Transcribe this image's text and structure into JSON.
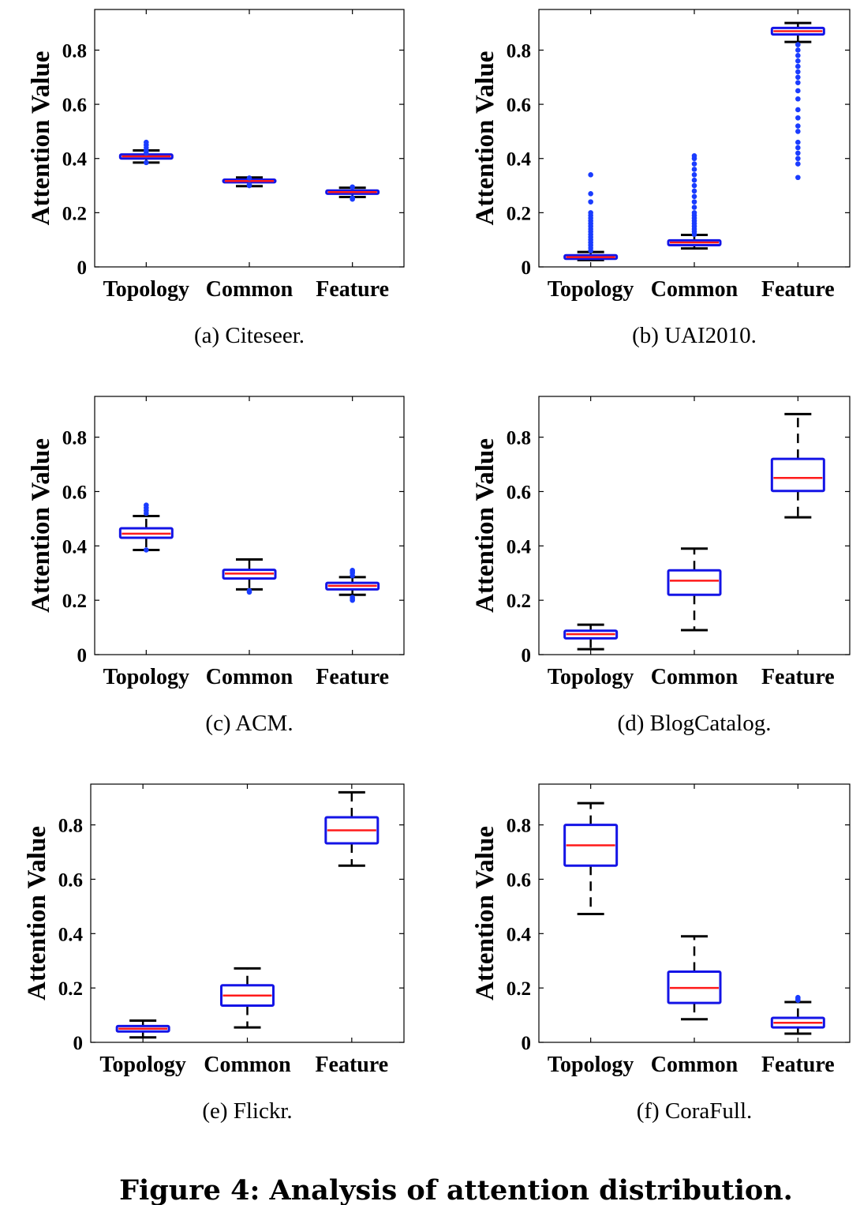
{
  "figure_caption": "Figure 4: Analysis of attention distribution.",
  "colors": {
    "box": "#1414e6",
    "median": "#ff1a1a",
    "whisker": "#000000",
    "outlier": "#1a3cff"
  },
  "chart_data": [
    {
      "type": "box",
      "caption": "(a)  Citeseer.",
      "ylabel": "Attention Value",
      "categories": [
        "Topology",
        "Common",
        "Feature"
      ],
      "yticks": [
        "0",
        "0.2",
        "0.4",
        "0.6",
        "0.8"
      ],
      "ylim": [
        0,
        0.95
      ],
      "grid": false,
      "boxes": [
        {
          "q1": 0.4,
          "median": 0.408,
          "q3": 0.415,
          "low": 0.385,
          "high": 0.43,
          "outliers": [
            0.385,
            0.42,
            0.43,
            0.44,
            0.45,
            0.46
          ]
        },
        {
          "q1": 0.312,
          "median": 0.317,
          "q3": 0.322,
          "low": 0.298,
          "high": 0.33,
          "outliers": [
            0.3,
            0.303,
            0.328
          ]
        },
        {
          "q1": 0.27,
          "median": 0.276,
          "q3": 0.282,
          "low": 0.258,
          "high": 0.292,
          "outliers": [
            0.25,
            0.255,
            0.295
          ]
        }
      ]
    },
    {
      "type": "box",
      "caption": "(b)  UAI2010.",
      "ylabel": "Attention Value",
      "categories": [
        "Topology",
        "Common",
        "Feature"
      ],
      "yticks": [
        "0",
        "0.2",
        "0.4",
        "0.6",
        "0.8"
      ],
      "ylim": [
        0,
        0.95
      ],
      "grid": false,
      "boxes": [
        {
          "q1": 0.03,
          "median": 0.036,
          "q3": 0.043,
          "low": 0.025,
          "high": 0.055,
          "outliers": [
            0.06,
            0.07,
            0.08,
            0.09,
            0.1,
            0.11,
            0.12,
            0.13,
            0.14,
            0.15,
            0.16,
            0.17,
            0.18,
            0.19,
            0.2,
            0.24,
            0.27,
            0.34
          ]
        },
        {
          "q1": 0.08,
          "median": 0.09,
          "q3": 0.098,
          "low": 0.068,
          "high": 0.118,
          "outliers": [
            0.12,
            0.13,
            0.14,
            0.15,
            0.16,
            0.17,
            0.18,
            0.19,
            0.2,
            0.22,
            0.24,
            0.26,
            0.28,
            0.3,
            0.32,
            0.34,
            0.36,
            0.38,
            0.4,
            0.41
          ]
        },
        {
          "q1": 0.858,
          "median": 0.87,
          "q3": 0.882,
          "low": 0.83,
          "high": 0.9,
          "outliers": [
            0.33,
            0.38,
            0.4,
            0.42,
            0.44,
            0.46,
            0.5,
            0.52,
            0.55,
            0.58,
            0.62,
            0.65,
            0.68,
            0.7,
            0.72,
            0.74,
            0.76,
            0.78,
            0.8,
            0.82
          ]
        }
      ]
    },
    {
      "type": "box",
      "caption": "(c)  ACM.",
      "ylabel": "Attention Value",
      "categories": [
        "Topology",
        "Common",
        "Feature"
      ],
      "yticks": [
        "0",
        "0.2",
        "0.4",
        "0.6",
        "0.8"
      ],
      "ylim": [
        0,
        0.95
      ],
      "grid": false,
      "boxes": [
        {
          "q1": 0.43,
          "median": 0.445,
          "q3": 0.465,
          "low": 0.385,
          "high": 0.51,
          "outliers": [
            0.385,
            0.52,
            0.53,
            0.54,
            0.55
          ]
        },
        {
          "q1": 0.28,
          "median": 0.298,
          "q3": 0.312,
          "low": 0.24,
          "high": 0.35,
          "outliers": [
            0.23,
            0.235
          ]
        },
        {
          "q1": 0.24,
          "median": 0.253,
          "q3": 0.264,
          "low": 0.22,
          "high": 0.285,
          "outliers": [
            0.2,
            0.205,
            0.21,
            0.29,
            0.3,
            0.305,
            0.31
          ]
        }
      ]
    },
    {
      "type": "box",
      "caption": "(d)  BlogCatalog.",
      "ylabel": "Attention Value",
      "categories": [
        "Topology",
        "Common",
        "Feature"
      ],
      "yticks": [
        "0",
        "0.2",
        "0.4",
        "0.6",
        "0.8"
      ],
      "ylim": [
        0,
        0.95
      ],
      "grid": false,
      "boxes": [
        {
          "q1": 0.06,
          "median": 0.075,
          "q3": 0.088,
          "low": 0.02,
          "high": 0.11,
          "outliers": []
        },
        {
          "q1": 0.22,
          "median": 0.272,
          "q3": 0.31,
          "low": 0.09,
          "high": 0.39,
          "outliers": []
        },
        {
          "q1": 0.602,
          "median": 0.65,
          "q3": 0.72,
          "low": 0.505,
          "high": 0.885,
          "outliers": []
        }
      ]
    },
    {
      "type": "box",
      "caption": "(e)  Flickr.",
      "ylabel": "Attention Value",
      "categories": [
        "Topology",
        "Common",
        "Feature"
      ],
      "yticks": [
        "0",
        "0.2",
        "0.4",
        "0.6",
        "0.8"
      ],
      "ylim": [
        0,
        0.95
      ],
      "grid": false,
      "boxes": [
        {
          "q1": 0.04,
          "median": 0.05,
          "q3": 0.06,
          "low": 0.018,
          "high": 0.08,
          "outliers": []
        },
        {
          "q1": 0.135,
          "median": 0.172,
          "q3": 0.21,
          "low": 0.055,
          "high": 0.272,
          "outliers": []
        },
        {
          "q1": 0.732,
          "median": 0.78,
          "q3": 0.828,
          "low": 0.65,
          "high": 0.92,
          "outliers": []
        }
      ]
    },
    {
      "type": "box",
      "caption": "(f)  CoraFull.",
      "ylabel": "Attention Value",
      "categories": [
        "Topology",
        "Common",
        "Feature"
      ],
      "yticks": [
        "0",
        "0.2",
        "0.4",
        "0.6",
        "0.8"
      ],
      "ylim": [
        0,
        0.95
      ],
      "grid": false,
      "boxes": [
        {
          "q1": 0.65,
          "median": 0.725,
          "q3": 0.8,
          "low": 0.472,
          "high": 0.88,
          "outliers": []
        },
        {
          "q1": 0.145,
          "median": 0.2,
          "q3": 0.26,
          "low": 0.085,
          "high": 0.39,
          "outliers": []
        },
        {
          "q1": 0.055,
          "median": 0.072,
          "q3": 0.09,
          "low": 0.032,
          "high": 0.148,
          "outliers": [
            0.155,
            0.16,
            0.165
          ]
        }
      ]
    }
  ]
}
